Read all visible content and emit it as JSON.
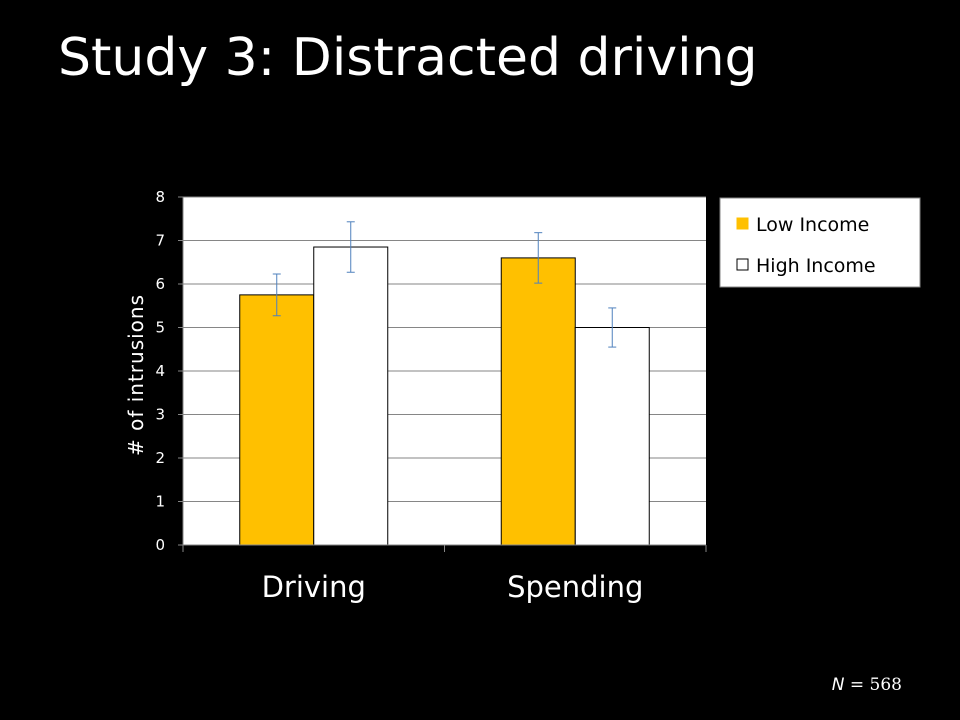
{
  "slide": {
    "title": "Study 3: Distracted driving",
    "footnote_var": "N",
    "footnote_value": " = 568"
  },
  "chart_data": {
    "type": "bar",
    "categories": [
      "Driving",
      "Spending"
    ],
    "series": [
      {
        "name": "Low Income",
        "values": [
          5.75,
          6.6
        ],
        "error": [
          0.48,
          0.58
        ],
        "color": "#FFC000"
      },
      {
        "name": "High Income",
        "values": [
          6.85,
          5.0
        ],
        "error": [
          0.58,
          0.45
        ],
        "color": "#FFFFFF"
      }
    ],
    "ylabel": "# of intrusions",
    "ylim": [
      0,
      8
    ],
    "yticks": [
      0,
      1,
      2,
      3,
      4,
      5,
      6,
      7,
      8
    ],
    "grid": true,
    "gridline_color": "#868686",
    "error_bar_color": "#4F81BD",
    "plot_background": "#FFFFFF",
    "legend_position": "right"
  }
}
